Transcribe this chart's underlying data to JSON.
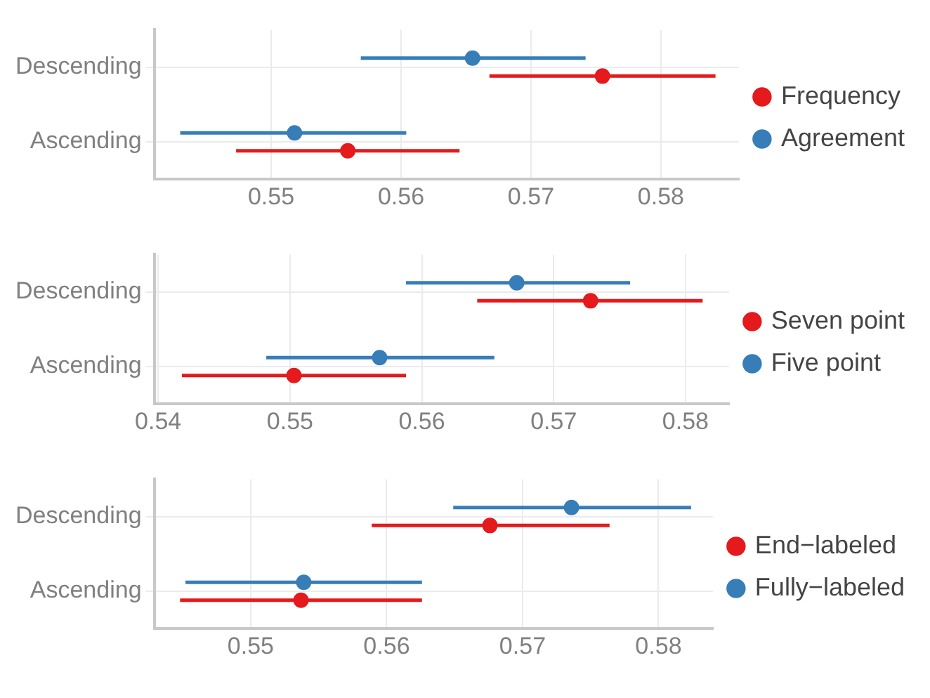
{
  "chart_data": [
    {
      "type": "scatter",
      "orientation": "horizontal",
      "categories": [
        "Descending",
        "Ascending"
      ],
      "marker": "circle",
      "grid": true,
      "legend": "right",
      "xlim": [
        0.541,
        0.586
      ],
      "xticks": [
        0.55,
        0.56,
        0.57,
        0.58
      ],
      "series": [
        {
          "name": "Frequency",
          "color": "#e41a1c",
          "values": [
            0.5755,
            0.5559
          ],
          "errors": [
            [
              0.5668,
              0.5842
            ],
            [
              0.5473,
              0.5645
            ]
          ]
        },
        {
          "name": "Agreement",
          "color": "#377eb8",
          "values": [
            0.5655,
            0.5518
          ],
          "errors": [
            [
              0.5569,
              0.5742
            ],
            [
              0.543,
              0.5604
            ]
          ]
        }
      ]
    },
    {
      "type": "scatter",
      "orientation": "horizontal",
      "categories": [
        "Descending",
        "Ascending"
      ],
      "marker": "circle",
      "grid": true,
      "legend": "right",
      "xlim": [
        0.5397,
        0.5833
      ],
      "xticks": [
        0.54,
        0.55,
        0.56,
        0.57,
        0.58
      ],
      "series": [
        {
          "name": "Seven point",
          "color": "#e41a1c",
          "values": [
            0.5728,
            0.5503
          ],
          "errors": [
            [
              0.5642,
              0.5813
            ],
            [
              0.5418,
              0.5588
            ]
          ]
        },
        {
          "name": "Five point",
          "color": "#377eb8",
          "values": [
            0.5672,
            0.5568
          ],
          "errors": [
            [
              0.5588,
              0.5758
            ],
            [
              0.5482,
              0.5655
            ]
          ]
        }
      ]
    },
    {
      "type": "scatter",
      "orientation": "horizontal",
      "categories": [
        "Descending",
        "Ascending"
      ],
      "marker": "circle",
      "grid": true,
      "legend": "right",
      "xlim": [
        0.5429,
        0.584
      ],
      "xticks": [
        0.55,
        0.56,
        0.57,
        0.58
      ],
      "series": [
        {
          "name": "End−labeled",
          "color": "#e41a1c",
          "values": [
            0.5676,
            0.5537
          ],
          "errors": [
            [
              0.5589,
              0.5764
            ],
            [
              0.5448,
              0.5626
            ]
          ]
        },
        {
          "name": "Fully−labeled",
          "color": "#377eb8",
          "values": [
            0.5736,
            0.5539
          ],
          "errors": [
            [
              0.5649,
              0.5824
            ],
            [
              0.5452,
              0.5626
            ]
          ]
        }
      ]
    }
  ]
}
